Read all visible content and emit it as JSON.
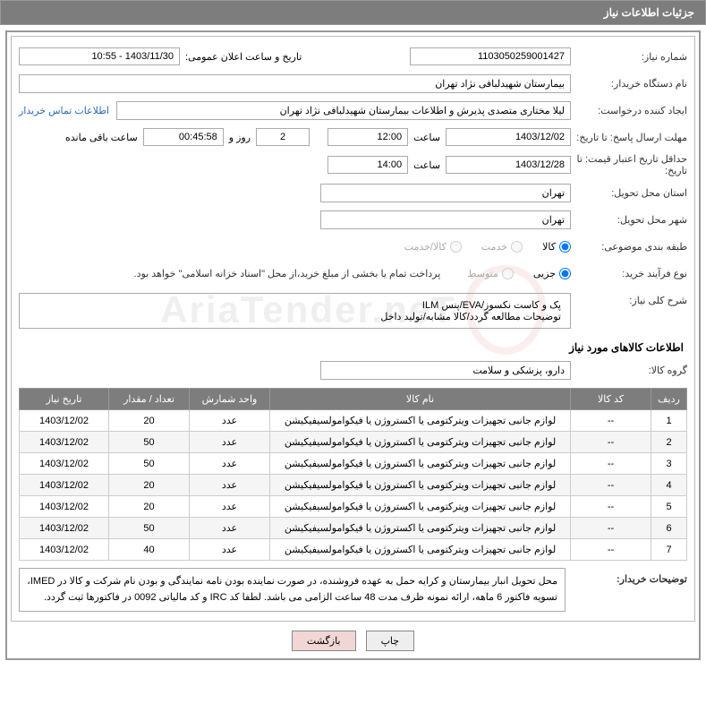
{
  "header": {
    "title": "جزئیات اطلاعات نیاز"
  },
  "fields": {
    "need_number_label": "شماره نیاز:",
    "need_number": "1103050259001427",
    "announce_label": "تاریخ و ساعت اعلان عمومی:",
    "announce_value": "1403/11/30 - 10:55",
    "buyer_org_label": "نام دستگاه خریدار:",
    "buyer_org": "بیمارستان شهیدلبافی نژاد تهران",
    "requester_label": "ایجاد کننده درخواست:",
    "requester": "لیلا مختاری متصدی پذیرش و اطلاعات بیمارستان شهیدلبافی نژاد تهران",
    "contact_link": "اطلاعات تماس خریدار",
    "resp_deadline_label": "مهلت ارسال پاسخ: تا تاریخ:",
    "resp_date": "1403/12/02",
    "time_label": "ساعت",
    "resp_time": "12:00",
    "days_label_val": "2",
    "days_and": "روز و",
    "countdown": "00:45:58",
    "remaining": "ساعت باقی مانده",
    "price_validity_label": "حداقل تاریخ اعتبار قیمت: تا تاریخ:",
    "price_date": "1403/12/28",
    "price_time": "14:00",
    "province_label": "استان محل تحویل:",
    "province": "تهران",
    "city_label": "شهر محل تحویل:",
    "city": "تهران",
    "category_label": "طبقه بندی موضوعی:",
    "cat_goods": "کالا",
    "cat_service": "خدمت",
    "cat_goods_service": "کالا/خدمت",
    "purchase_type_label": "نوع فرآیند خرید:",
    "pt_partial": "جزیی",
    "pt_medium": "متوسط",
    "purchase_note": "پرداخت تمام یا بخشی از مبلغ خرید،از محل \"اسناد خزانه اسلامی\" خواهد بود.",
    "general_desc_label": "شرح کلی نیاز:",
    "general_desc_line1": "پک و کاست نکسوز/EVA/پنس ILM",
    "general_desc_line2": "توضیحات مطالعه گردد/کالا مشابه/تولید داخل",
    "items_section_title": "اطلاعات کالاهای مورد نیاز",
    "goods_group_label": "گروه کالا:",
    "goods_group": "دارو، پزشکی و سلامت",
    "buyer_notes_label": "توضیحات خریدار:",
    "buyer_notes": "محل تحویل انبار بیمارستان و کرایه حمل به عهده فروشنده، در صورت نماینده بودن نامه نمایندگی و بودن نام شرکت و کالا در IMED، تسویه فاکتور 6 ماهه، ارائه نمونه ظرف مدت 48 ساعت الزامی می باشد. لطفا کد IRC و کد مالیاتی 0092 در فاکتورها ثبت گردد."
  },
  "table": {
    "headers": {
      "row": "ردیف",
      "code": "کد کالا",
      "name": "نام کالا",
      "unit": "واحد شمارش",
      "qty": "تعداد / مقدار",
      "date": "تاریخ نیاز"
    },
    "rows": [
      {
        "n": "1",
        "code": "--",
        "name": "لوازم جانبی تجهیزات ویترکتومی یا اکستروژن یا فیکوامولسیفیکیشن",
        "unit": "عدد",
        "qty": "20",
        "date": "1403/12/02"
      },
      {
        "n": "2",
        "code": "--",
        "name": "لوازم جانبی تجهیزات ویترکتومی یا اکستروژن یا فیکوامولسیفیکیشن",
        "unit": "عدد",
        "qty": "50",
        "date": "1403/12/02"
      },
      {
        "n": "3",
        "code": "--",
        "name": "لوازم جانبی تجهیزات ویترکتومی یا اکستروژن یا فیکوامولسیفیکیشن",
        "unit": "عدد",
        "qty": "50",
        "date": "1403/12/02"
      },
      {
        "n": "4",
        "code": "--",
        "name": "لوازم جانبی تجهیزات ویترکتومی یا اکستروژن یا فیکوامولسیفیکیشن",
        "unit": "عدد",
        "qty": "20",
        "date": "1403/12/02"
      },
      {
        "n": "5",
        "code": "--",
        "name": "لوازم جانبی تجهیزات ویترکتومی یا اکستروژن یا فیکوامولسیفیکیشن",
        "unit": "عدد",
        "qty": "20",
        "date": "1403/12/02"
      },
      {
        "n": "6",
        "code": "--",
        "name": "لوازم جانبی تجهیزات ویترکتومی یا اکستروژن یا فیکوامولسیفیکیشن",
        "unit": "عدد",
        "qty": "50",
        "date": "1403/12/02"
      },
      {
        "n": "7",
        "code": "--",
        "name": "لوازم جانبی تجهیزات ویترکتومی یا اکستروژن یا فیکوامولسیفیکیشن",
        "unit": "عدد",
        "qty": "40",
        "date": "1403/12/02"
      }
    ]
  },
  "buttons": {
    "print": "چاپ",
    "back": "بازگشت"
  },
  "colors": {
    "header_bg": "#7d7d7d",
    "border": "#999999",
    "link": "#2a6ab5",
    "btn_back_bg": "#f2d6d6"
  }
}
